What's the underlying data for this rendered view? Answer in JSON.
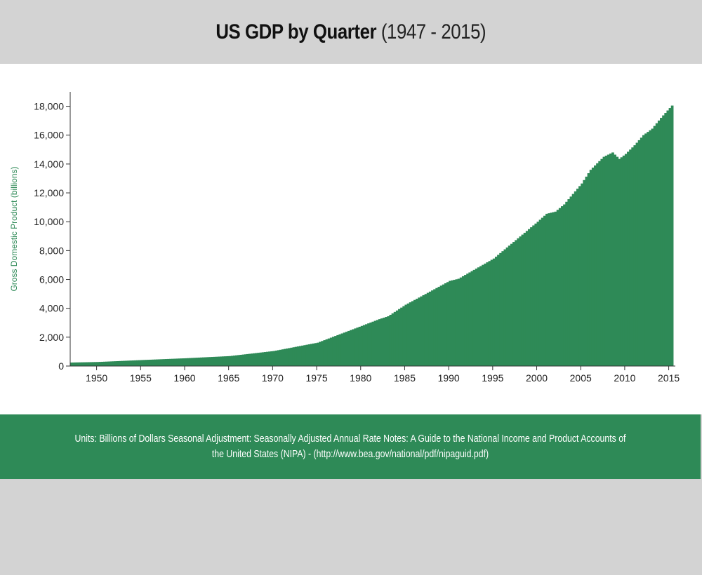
{
  "page": {
    "title_main": "US GDP by Quarter",
    "title_sub": "(1947 - 2015)",
    "notes": "Units: Billions of Dollars Seasonal Adjustment: Seasonally Adjusted Annual Rate Notes: A Guide to the National Income and Product Accounts of the United States (NIPA) - (http://www.bea.gov/national/pdf/nipaguid.pdf)"
  },
  "colors": {
    "bar": "#2e8a57",
    "background": "#d3d3d3",
    "panel": "#ffffff",
    "ylabel": "#2e8a57"
  },
  "chart_data": {
    "type": "bar",
    "title": "US GDP by Quarter (1947 - 2015)",
    "xlabel": "",
    "ylabel": "Gross Domestic Product (billions)",
    "x_ticks": [
      "1950",
      "1955",
      "1960",
      "1965",
      "1970",
      "1975",
      "1980",
      "1985",
      "1990",
      "1995",
      "2000",
      "2005",
      "2010",
      "2015"
    ],
    "y_ticks": [
      "0",
      "2,000",
      "4,000",
      "6,000",
      "8,000",
      "10,000",
      "12,000",
      "14,000",
      "16,000",
      "18,000"
    ],
    "xlim": [
      1947,
      2015.75
    ],
    "ylim": [
      0,
      19000
    ],
    "grid": false,
    "legend": "none",
    "series": [
      {
        "frequency": "quarterly",
        "start": "1947-Q1",
        "end": "2015-Q2",
        "anchors": [
          [
            1947.0,
            243
          ],
          [
            1950.0,
            280
          ],
          [
            1955.0,
            415
          ],
          [
            1960.0,
            540
          ],
          [
            1965.0,
            690
          ],
          [
            1970.0,
            1040
          ],
          [
            1975.0,
            1620
          ],
          [
            1980.0,
            2780
          ],
          [
            1982.0,
            3250
          ],
          [
            1983.0,
            3450
          ],
          [
            1985.0,
            4250
          ],
          [
            1990.0,
            5900
          ],
          [
            1991.0,
            6050
          ],
          [
            1995.0,
            7450
          ],
          [
            2000.0,
            10000
          ],
          [
            2001.0,
            10550
          ],
          [
            2002.0,
            10700
          ],
          [
            2003.0,
            11200
          ],
          [
            2005.0,
            12650
          ],
          [
            2006.0,
            13600
          ],
          [
            2007.5,
            14500
          ],
          [
            2008.5,
            14800
          ],
          [
            2009.25,
            14350
          ],
          [
            2010.0,
            14700
          ],
          [
            2011.0,
            15300
          ],
          [
            2012.0,
            16000
          ],
          [
            2013.0,
            16450
          ],
          [
            2014.0,
            17200
          ],
          [
            2015.25,
            18050
          ]
        ]
      }
    ]
  }
}
